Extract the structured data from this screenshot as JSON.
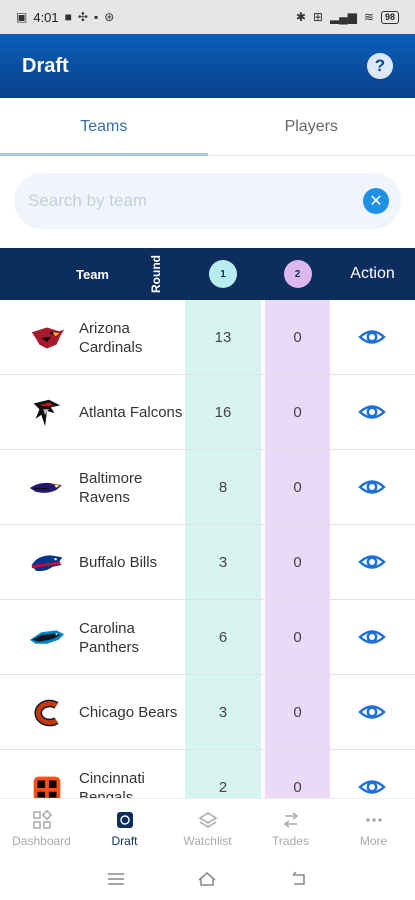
{
  "status_bar": {
    "time": "4:01",
    "battery": "98"
  },
  "header": {
    "title": "Draft",
    "help": "?"
  },
  "tabs": [
    {
      "label": "Teams",
      "active": true
    },
    {
      "label": "Players",
      "active": false
    }
  ],
  "search": {
    "placeholder": "Search by team",
    "value": "",
    "clear": "✕"
  },
  "table": {
    "headers": {
      "team": "Team",
      "round": "Round",
      "round1": "1",
      "round2": "2",
      "action": "Action"
    },
    "rows": [
      {
        "team": "Arizona Cardinals",
        "r1": "13",
        "r2": "0",
        "logo": "cardinals-logo"
      },
      {
        "team": "Atlanta Falcons",
        "r1": "16",
        "r2": "0",
        "logo": "falcons-logo"
      },
      {
        "team": "Baltimore Ravens",
        "r1": "8",
        "r2": "0",
        "logo": "ravens-logo"
      },
      {
        "team": "Buffalo Bills",
        "r1": "3",
        "r2": "0",
        "logo": "bills-logo"
      },
      {
        "team": "Carolina Panthers",
        "r1": "6",
        "r2": "0",
        "logo": "panthers-logo"
      },
      {
        "team": "Chicago Bears",
        "r1": "3",
        "r2": "0",
        "logo": "bears-logo"
      },
      {
        "team": "Cincinnati Bengals",
        "r1": "2",
        "r2": "0",
        "logo": "bengals-logo"
      }
    ]
  },
  "bottom_nav": [
    {
      "label": "Dashboard",
      "icon": "dashboard-icon",
      "active": false
    },
    {
      "label": "Draft",
      "icon": "draft-icon",
      "active": true
    },
    {
      "label": "Watchlist",
      "icon": "watchlist-icon",
      "active": false
    },
    {
      "label": "Trades",
      "icon": "trades-icon",
      "active": false
    },
    {
      "label": "More",
      "icon": "more-icon",
      "active": false
    }
  ],
  "colors": {
    "header": "#0b4a97",
    "table_header": "#0d2d5e",
    "round1": "#d8f4f1",
    "round2": "#ead9f7",
    "accent": "#1e6fd9"
  }
}
